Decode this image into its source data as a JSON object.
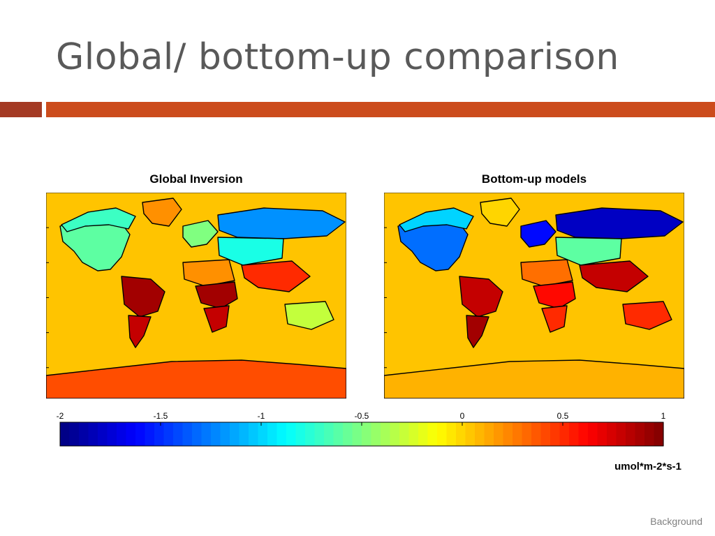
{
  "slide": {
    "title": "Global/ bottom-up comparison",
    "footer": "Background",
    "accent_colors": {
      "bar_left": "#a43a24",
      "bar_right": "#cc4c1c"
    }
  },
  "maps": [
    {
      "title": "Global Inversion",
      "background_color": "#ffc400",
      "regions": [
        {
          "name": "North America",
          "value": -0.6
        },
        {
          "name": "Boreal North America",
          "value": -0.7
        },
        {
          "name": "Greenland",
          "value": 0.2
        },
        {
          "name": "South America tropics",
          "value": 0.9
        },
        {
          "name": "South America south",
          "value": 0.8
        },
        {
          "name": "Europe",
          "value": -0.5
        },
        {
          "name": "Siberia / Boreal Asia",
          "value": -1.2
        },
        {
          "name": "Central Asia",
          "value": -0.8
        },
        {
          "name": "North Africa",
          "value": 0.2
        },
        {
          "name": "Tropical Africa",
          "value": 0.9
        },
        {
          "name": "Southern Africa",
          "value": 0.8
        },
        {
          "name": "South & East Asia",
          "value": 0.5
        },
        {
          "name": "Australia",
          "value": -0.3
        },
        {
          "name": "Antarctica",
          "value": 0.4
        }
      ]
    },
    {
      "title": "Bottom-up models",
      "background_color": "#ffc400",
      "regions": [
        {
          "name": "North America",
          "value": -1.3
        },
        {
          "name": "Boreal North America",
          "value": -1.0
        },
        {
          "name": "Greenland",
          "value": 0.0
        },
        {
          "name": "South America tropics",
          "value": 0.8
        },
        {
          "name": "South America south",
          "value": 0.9
        },
        {
          "name": "Europe",
          "value": -1.6
        },
        {
          "name": "Siberia / Boreal Asia",
          "value": -1.8
        },
        {
          "name": "Central Asia",
          "value": -0.6
        },
        {
          "name": "North Africa",
          "value": 0.3
        },
        {
          "name": "Tropical Africa",
          "value": 0.6
        },
        {
          "name": "Southern Africa",
          "value": 0.5
        },
        {
          "name": "South & East Asia",
          "value": 0.8
        },
        {
          "name": "Australia",
          "value": 0.5
        },
        {
          "name": "Antarctica",
          "value": 0.1
        }
      ]
    }
  ],
  "colorbar": {
    "ticks": [
      "-2",
      "-1.5",
      "-1",
      "-0.5",
      "0",
      "0.5",
      "1"
    ],
    "min": -2,
    "max": 1,
    "colormap": "jet",
    "unit": "umol*m-2*s-1"
  }
}
